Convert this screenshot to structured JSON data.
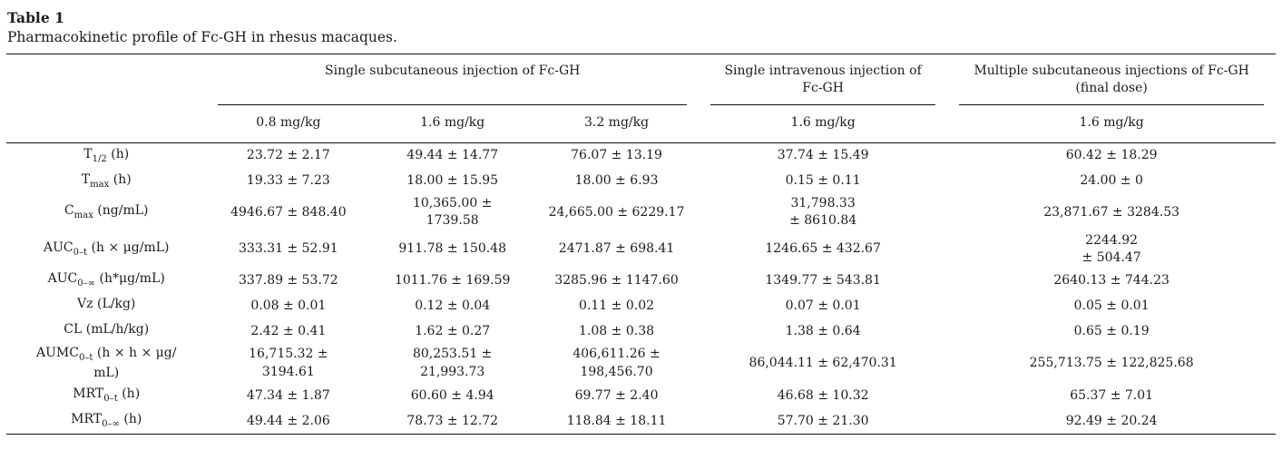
{
  "page": {
    "table_number": "Table 1",
    "caption": "Pharmacokinetic profile of Fc-GH in rhesus macaques."
  },
  "table": {
    "groups": [
      {
        "label": "Single subcutaneous injection of Fc-GH",
        "doses": [
          "0.8 mg/kg",
          "1.6 mg/kg",
          "3.2 mg/kg"
        ]
      },
      {
        "label": "Single intravenous injection of\nFc-GH",
        "doses": [
          "1.6 mg/kg"
        ]
      },
      {
        "label": "Multiple subcutaneous injections of Fc-GH\n(final dose)",
        "doses": [
          "1.6 mg/kg"
        ]
      }
    ],
    "rows": [
      {
        "param": {
          "base": "T",
          "sub": "1/2",
          "unit": " (h)"
        },
        "values": [
          "23.72 ± 2.17",
          "49.44 ± 14.77",
          "76.07 ± 13.19",
          "37.74 ± 15.49",
          "60.42 ± 18.29"
        ]
      },
      {
        "param": {
          "base": "T",
          "sub": "max",
          "unit": " (h)"
        },
        "values": [
          "19.33 ± 7.23",
          "18.00 ± 15.95",
          "18.00 ± 6.93",
          "0.15 ± 0.11",
          "24.00 ± 0"
        ]
      },
      {
        "param": {
          "base": "C",
          "sub": "max",
          "unit": " (ng/mL)"
        },
        "values": [
          "4946.67 ± 848.40",
          "10,365.00 ±\n1739.58",
          "24,665.00 ± 6229.17",
          "31,798.33\n± 8610.84",
          "23,871.67 ± 3284.53"
        ]
      },
      {
        "param": {
          "base": "AUC",
          "sub": "0–t",
          "unit": " (h × μg/mL)"
        },
        "values": [
          "333.31 ± 52.91",
          "911.78 ± 150.48",
          "2471.87 ± 698.41",
          "1246.65 ± 432.67",
          "2244.92\n± 504.47"
        ]
      },
      {
        "param": {
          "base": "AUC",
          "sub": "0–∞",
          "unit": " (h*μg/mL)"
        },
        "values": [
          "337.89 ± 53.72",
          "1011.76 ± 169.59",
          "3285.96 ± 1147.60",
          "1349.77 ± 543.81",
          "2640.13 ± 744.23"
        ]
      },
      {
        "param": {
          "base": "Vz",
          "sub": "",
          "unit": " (L/kg)"
        },
        "values": [
          "0.08 ± 0.01",
          "0.12 ± 0.04",
          "0.11 ± 0.02",
          "0.07 ± 0.01",
          "0.05 ± 0.01"
        ]
      },
      {
        "param": {
          "base": "CL",
          "sub": "",
          "unit": " (mL/h/kg)"
        },
        "values": [
          "2.42 ± 0.41",
          "1.62 ± 0.27",
          "1.08 ± 0.38",
          "1.38 ± 0.64",
          "0.65 ± 0.19"
        ]
      },
      {
        "param": {
          "base": "AUMC",
          "sub": "0–t",
          "unit": " (h × h × μg/\nmL)"
        },
        "values": [
          "16,715.32 ±\n3194.61",
          "80,253.51 ±\n21,993.73",
          "406,611.26 ±\n198,456.70",
          "86,044.11 ± 62,470.31",
          "255,713.75 ± 122,825.68"
        ]
      },
      {
        "param": {
          "base": "MRT",
          "sub": "0–t",
          "unit": " (h)"
        },
        "values": [
          "47.34 ± 1.87",
          "60.60 ± 4.94",
          "69.77 ± 2.40",
          "46.68 ± 10.32",
          "65.37 ± 7.01"
        ]
      },
      {
        "param": {
          "base": "MRT",
          "sub": "0–∞",
          "unit": " (h)"
        },
        "values": [
          "49.44 ± 2.06",
          "78.73 ± 12.72",
          "118.84 ± 18.11",
          "57.70 ± 21.30",
          "92.49 ± 20.24"
        ]
      }
    ]
  }
}
